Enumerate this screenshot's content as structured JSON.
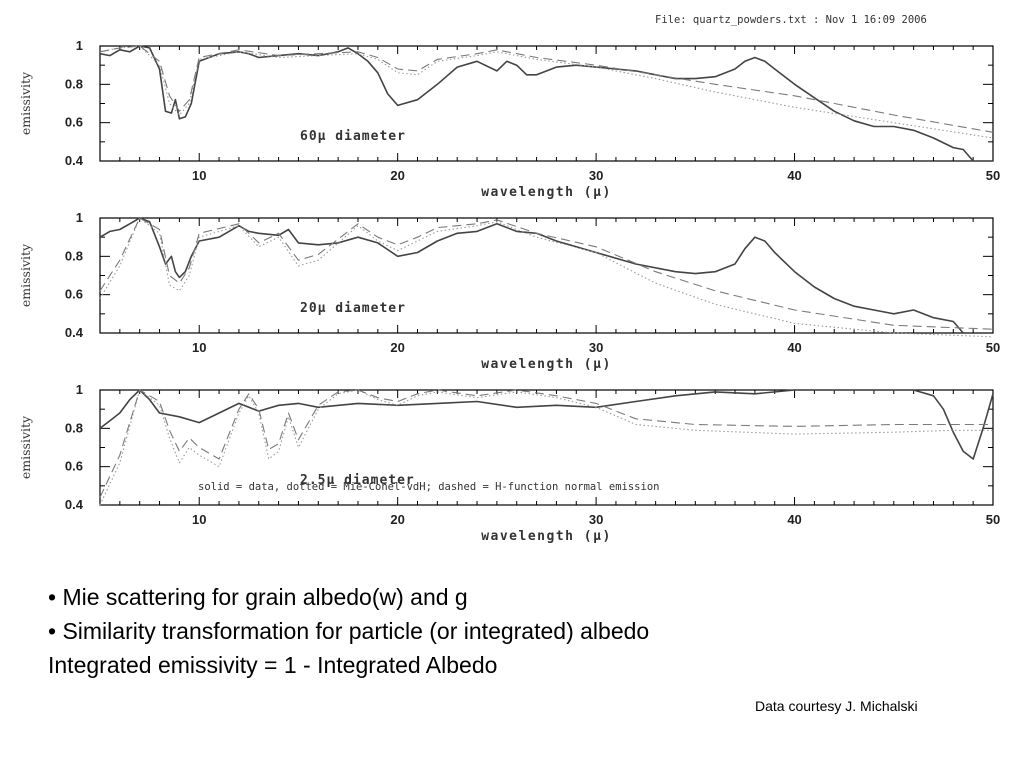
{
  "header": {
    "file_label": "File: quartz_powders.txt : Nov  1 16:09 2006"
  },
  "text": {
    "line1": "• Mie scattering for grain albedo(w) and g",
    "line2": "• Similarity transformation for particle (or integrated) albedo",
    "line3": "Integrated emissivity = 1 - Integrated Albedo",
    "credit": "Data courtesy J. Michalski"
  },
  "colors": {
    "data": "#444444",
    "mie": "#9a9a9a",
    "hfunc": "#7a7a7a",
    "axis": "#000000"
  },
  "chart_data": [
    {
      "type": "line",
      "annotation": "60μ diameter",
      "xlabel": "wavelength (μ)",
      "ylabel": "emissivity",
      "xlim": [
        5,
        50
      ],
      "ylim": [
        0.4,
        1.0
      ],
      "xticks": [
        10,
        20,
        30,
        40,
        50
      ],
      "yticks": [
        0.4,
        0.6,
        0.8,
        1
      ],
      "series": [
        {
          "style": "solid",
          "x": [
            5,
            5.5,
            6,
            6.5,
            7,
            7.5,
            8,
            8.3,
            8.6,
            8.8,
            9,
            9.3,
            9.6,
            10,
            11,
            12,
            12.5,
            13,
            14,
            15,
            16,
            17,
            17.5,
            18,
            18.5,
            19,
            19.5,
            20,
            21,
            22,
            23,
            24,
            25,
            25.5,
            26,
            26.5,
            27,
            28,
            29,
            30,
            31,
            32,
            33,
            34,
            35,
            36,
            37,
            37.5,
            38,
            38.5,
            39,
            40,
            41,
            42,
            43,
            44,
            45,
            46,
            47,
            48,
            48.5,
            49,
            50
          ],
          "y": [
            0.96,
            0.95,
            0.98,
            0.97,
            1,
            0.99,
            0.88,
            0.66,
            0.65,
            0.72,
            0.62,
            0.63,
            0.7,
            0.92,
            0.96,
            0.97,
            0.96,
            0.94,
            0.95,
            0.96,
            0.95,
            0.97,
            0.99,
            0.96,
            0.92,
            0.86,
            0.75,
            0.69,
            0.72,
            0.8,
            0.89,
            0.92,
            0.87,
            0.92,
            0.9,
            0.85,
            0.85,
            0.89,
            0.9,
            0.89,
            0.88,
            0.87,
            0.85,
            0.83,
            0.83,
            0.84,
            0.88,
            0.92,
            0.94,
            0.92,
            0.88,
            0.8,
            0.73,
            0.66,
            0.61,
            0.58,
            0.58,
            0.56,
            0.52,
            0.47,
            0.46,
            0.4,
            0.4
          ]
        },
        {
          "style": "dotted",
          "x": [
            5,
            6,
            7,
            8,
            8.5,
            9,
            9.5,
            10,
            12,
            14,
            16,
            18,
            19,
            20,
            21,
            22,
            24,
            25,
            27,
            30,
            33,
            36,
            40,
            45,
            50
          ],
          "y": [
            0.97,
            0.99,
            1,
            0.9,
            0.7,
            0.64,
            0.7,
            0.93,
            0.97,
            0.94,
            0.95,
            0.96,
            0.93,
            0.86,
            0.85,
            0.92,
            0.95,
            0.97,
            0.93,
            0.89,
            0.83,
            0.76,
            0.68,
            0.6,
            0.52
          ]
        },
        {
          "style": "dashed",
          "x": [
            5,
            6,
            7,
            8,
            8.5,
            9,
            9.5,
            10,
            12,
            14,
            16,
            18,
            19,
            20,
            21,
            22,
            24,
            25,
            27,
            30,
            33,
            36,
            40,
            45,
            50
          ],
          "y": [
            0.97,
            0.99,
            1,
            0.92,
            0.74,
            0.66,
            0.72,
            0.94,
            0.98,
            0.95,
            0.96,
            0.97,
            0.94,
            0.88,
            0.87,
            0.93,
            0.96,
            0.98,
            0.94,
            0.9,
            0.85,
            0.8,
            0.74,
            0.64,
            0.55
          ]
        }
      ]
    },
    {
      "type": "line",
      "annotation": "20μ diameter",
      "xlabel": "wavelength (μ)",
      "ylabel": "emissivity",
      "xlim": [
        5,
        50
      ],
      "ylim": [
        0.4,
        1.0
      ],
      "xticks": [
        10,
        20,
        30,
        40,
        50
      ],
      "yticks": [
        0.4,
        0.6,
        0.8,
        1
      ],
      "series": [
        {
          "style": "solid",
          "x": [
            5,
            5.5,
            6,
            6.5,
            7,
            7.5,
            8,
            8.3,
            8.6,
            8.8,
            9,
            9.3,
            9.6,
            10,
            11,
            12,
            12.5,
            13,
            14,
            14.5,
            15,
            16,
            17,
            18,
            19,
            20,
            21,
            22,
            23,
            24,
            25,
            26,
            27,
            28,
            29,
            30,
            32,
            34,
            35,
            36,
            37,
            37.5,
            38,
            38.5,
            39,
            40,
            41,
            42,
            43,
            44,
            45,
            46,
            47,
            48,
            48.5
          ],
          "y": [
            0.9,
            0.93,
            0.94,
            0.97,
            1,
            0.98,
            0.85,
            0.76,
            0.8,
            0.72,
            0.69,
            0.72,
            0.8,
            0.88,
            0.9,
            0.96,
            0.93,
            0.92,
            0.91,
            0.94,
            0.87,
            0.86,
            0.87,
            0.9,
            0.87,
            0.8,
            0.82,
            0.88,
            0.92,
            0.93,
            0.97,
            0.93,
            0.92,
            0.88,
            0.85,
            0.82,
            0.76,
            0.72,
            0.71,
            0.72,
            0.76,
            0.84,
            0.9,
            0.88,
            0.82,
            0.72,
            0.64,
            0.58,
            0.54,
            0.52,
            0.5,
            0.52,
            0.48,
            0.46,
            0.4
          ]
        },
        {
          "style": "dotted",
          "x": [
            5,
            6,
            7,
            8,
            8.5,
            9,
            9.5,
            10,
            12,
            13,
            14,
            15,
            16,
            18,
            19,
            20,
            21,
            22,
            24,
            25,
            27,
            30,
            33,
            36,
            40,
            45,
            50
          ],
          "y": [
            0.58,
            0.75,
            1,
            0.92,
            0.65,
            0.62,
            0.7,
            0.9,
            0.96,
            0.85,
            0.9,
            0.75,
            0.78,
            0.96,
            0.88,
            0.83,
            0.88,
            0.93,
            0.96,
            0.98,
            0.9,
            0.82,
            0.66,
            0.55,
            0.45,
            0.4,
            0.38
          ]
        },
        {
          "style": "dashed",
          "x": [
            5,
            6,
            7,
            8,
            8.5,
            9,
            9.5,
            10,
            12,
            13,
            14,
            15,
            16,
            18,
            19,
            20,
            21,
            22,
            24,
            25,
            27,
            30,
            33,
            36,
            40,
            45,
            50
          ],
          "y": [
            0.62,
            0.78,
            1,
            0.94,
            0.7,
            0.66,
            0.74,
            0.92,
            0.97,
            0.87,
            0.92,
            0.78,
            0.81,
            0.97,
            0.9,
            0.86,
            0.9,
            0.95,
            0.97,
            0.99,
            0.92,
            0.85,
            0.72,
            0.62,
            0.52,
            0.44,
            0.42
          ]
        }
      ]
    },
    {
      "type": "line",
      "annotation": "2.5μ diameter",
      "legend_note": "solid = data, dotted = Mie-Conel-vdH; dashed = H-function normal emission",
      "xlabel": "wavelength (μ)",
      "ylabel": "emissivity",
      "xlim": [
        5,
        50
      ],
      "ylim": [
        0.4,
        1.0
      ],
      "xticks": [
        10,
        20,
        30,
        40,
        50
      ],
      "yticks": [
        0.4,
        0.6,
        0.8,
        1
      ],
      "series": [
        {
          "style": "solid",
          "x": [
            5,
            5.5,
            6,
            6.5,
            7,
            7.5,
            8,
            9,
            10,
            11,
            12,
            13,
            14,
            15,
            16,
            18,
            20,
            22,
            24,
            26,
            28,
            30,
            32,
            34,
            36,
            38,
            40,
            42,
            44,
            46,
            47,
            47.5,
            48,
            48.5,
            49,
            49.5,
            50
          ],
          "y": [
            0.8,
            0.84,
            0.88,
            0.95,
            1,
            0.95,
            0.88,
            0.86,
            0.83,
            0.88,
            0.93,
            0.89,
            0.92,
            0.93,
            0.91,
            0.93,
            0.92,
            0.93,
            0.94,
            0.91,
            0.92,
            0.91,
            0.94,
            0.97,
            0.99,
            0.98,
            1,
            1,
            1,
            1,
            0.97,
            0.9,
            0.78,
            0.68,
            0.64,
            0.8,
            0.98
          ]
        },
        {
          "style": "dotted",
          "x": [
            5,
            6,
            7,
            8,
            8.5,
            9,
            9.5,
            10,
            11,
            12,
            12.5,
            13,
            13.5,
            14,
            14.5,
            15,
            16,
            17,
            18,
            19,
            20,
            21,
            22,
            24,
            26,
            28,
            30,
            32,
            35,
            40,
            45,
            48,
            50
          ],
          "y": [
            0.4,
            0.62,
            1,
            0.92,
            0.75,
            0.62,
            0.7,
            0.66,
            0.6,
            0.88,
            0.97,
            0.88,
            0.64,
            0.68,
            0.86,
            0.7,
            0.9,
            0.98,
            1,
            0.95,
            0.92,
            0.97,
            0.99,
            0.96,
            0.99,
            0.96,
            0.91,
            0.82,
            0.79,
            0.77,
            0.78,
            0.79,
            0.79
          ]
        },
        {
          "style": "dashed",
          "x": [
            5,
            6,
            7,
            8,
            8.5,
            9,
            9.5,
            10,
            11,
            12,
            12.5,
            13,
            13.5,
            14,
            14.5,
            15,
            16,
            17,
            18,
            19,
            20,
            21,
            22,
            24,
            26,
            28,
            30,
            32,
            35,
            40,
            45,
            48,
            50
          ],
          "y": [
            0.44,
            0.66,
            1,
            0.94,
            0.79,
            0.68,
            0.75,
            0.7,
            0.64,
            0.9,
            0.98,
            0.9,
            0.69,
            0.72,
            0.88,
            0.74,
            0.92,
            0.99,
            1,
            0.96,
            0.94,
            0.98,
            1,
            0.97,
            1,
            0.97,
            0.93,
            0.85,
            0.82,
            0.81,
            0.82,
            0.82,
            0.82
          ]
        }
      ]
    }
  ]
}
